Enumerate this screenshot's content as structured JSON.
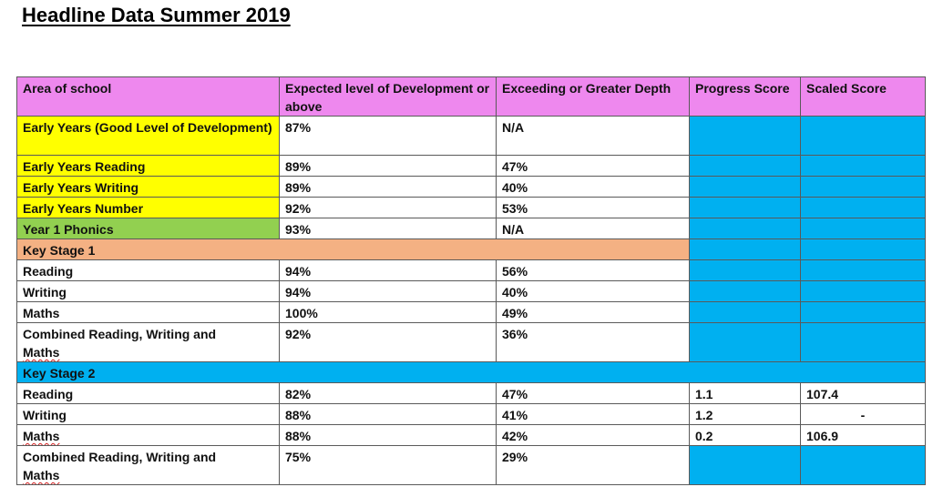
{
  "title": "Headline Data Summer 2019",
  "colors": {
    "header": "#ee88ee",
    "early_years": "#ffff00",
    "phonics": "#92d050",
    "ks1": "#f4b183",
    "ks2_and_empty": "#00b0f0"
  },
  "headers": {
    "area": "Area of school",
    "expected": "Expected level of Development or above",
    "exceeding": "Exceeding or Greater Depth",
    "progress": "Progress Score",
    "scaled": "Scaled Score"
  },
  "early_years": [
    {
      "area": "Early Years (Good Level of Development)",
      "expected": "87%",
      "exceeding": "N/A"
    },
    {
      "area": "Early Years Reading",
      "expected": "89%",
      "exceeding": "47%"
    },
    {
      "area": "Early Years Writing",
      "expected": "89%",
      "exceeding": "40%"
    },
    {
      "area": "Early Years Number",
      "expected": "92%",
      "exceeding": "53%"
    }
  ],
  "phonics": {
    "area": "Year 1 Phonics",
    "expected": "93%",
    "exceeding": "N/A"
  },
  "ks1": {
    "label": "Key Stage 1",
    "rows": [
      {
        "area": "Reading",
        "expected": "94%",
        "exceeding": "56%"
      },
      {
        "area": "Writing",
        "expected": "94%",
        "exceeding": "40%"
      },
      {
        "area": "Maths",
        "expected": "100%",
        "exceeding": "49%"
      },
      {
        "area_line1": "Combined Reading, Writing and",
        "area_line2": "Maths",
        "expected": "92%",
        "exceeding": "36%"
      }
    ]
  },
  "ks2": {
    "label": "Key Stage 2",
    "rows": [
      {
        "area": "Reading",
        "expected": "82%",
        "exceeding": "47%",
        "progress": "1.1",
        "scaled": "107.4"
      },
      {
        "area": "Writing",
        "expected": "88%",
        "exceeding": "41%",
        "progress": "1.2",
        "scaled": "-"
      },
      {
        "area": "Maths",
        "expected": "88%",
        "exceeding": "42%",
        "progress": "0.2",
        "scaled": "106.9"
      },
      {
        "area_line1": "Combined Reading, Writing and",
        "area_line2": "Maths",
        "expected": "75%",
        "exceeding": "29%"
      }
    ]
  }
}
